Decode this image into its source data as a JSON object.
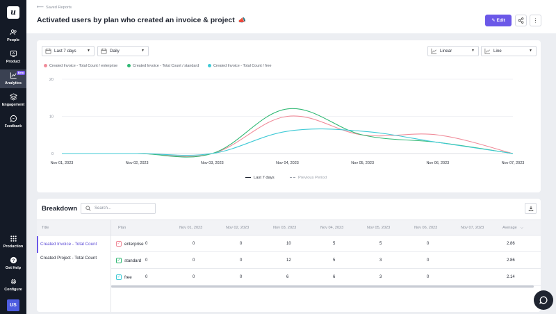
{
  "sidebar": {
    "logo": "u",
    "items": [
      {
        "label": "People",
        "icon": "people-icon"
      },
      {
        "label": "Product",
        "icon": "product-icon"
      },
      {
        "label": "Analytics",
        "icon": "analytics-icon",
        "badge": "Beta",
        "active": true
      },
      {
        "label": "Engagement",
        "icon": "engagement-icon"
      },
      {
        "label": "Feedback",
        "icon": "feedback-icon"
      }
    ],
    "bottom": [
      {
        "label": "Production",
        "icon": "grid-icon"
      },
      {
        "label": "Get Help",
        "icon": "help-icon"
      },
      {
        "label": "Configure",
        "icon": "gear-icon"
      }
    ],
    "avatar": "US"
  },
  "header": {
    "back_label": "Saved Reports",
    "title": "Activated users by plan who created an invoice & project",
    "edit_label": "Edit"
  },
  "controls": {
    "date_range": "Last 7 days",
    "interval": "Daily",
    "scale": "Linear",
    "chart_type": "Line"
  },
  "chart_data": {
    "type": "line",
    "x": [
      "Nov 01, 2023",
      "Nov 02, 2023",
      "Nov 03, 2023",
      "Nov 04, 2023",
      "Nov 05, 2023",
      "Nov 06, 2023",
      "Nov 07, 2023"
    ],
    "y_ticks": [
      "0",
      "10",
      "20"
    ],
    "ylim": [
      0,
      20
    ],
    "series": [
      {
        "name": "Created Invoice - Total Count / enterprise",
        "color": "#f08c9a",
        "values": [
          0,
          0,
          0,
          10,
          5,
          5,
          0
        ]
      },
      {
        "name": "Created Invoice - Total Count / standard",
        "color": "#2fb873",
        "values": [
          0,
          0,
          0,
          12,
          5,
          3,
          0
        ]
      },
      {
        "name": "Created Invoice - Total Count / free",
        "color": "#3fcad6",
        "values": [
          0,
          0,
          0,
          6,
          6,
          3,
          0
        ]
      }
    ],
    "period_legend": {
      "current": "Last 7 days",
      "previous": "Previous Period"
    },
    "grid": true
  },
  "breakdown": {
    "title": "Breakdown",
    "search_placeholder": "Search...",
    "col_title": "Title",
    "col_plan": "Plan",
    "dates": [
      "Nov 01, 2023",
      "Nov 02, 2023",
      "Nov 03, 2023",
      "Nov 04, 2023",
      "Nov 05, 2023",
      "Nov 06, 2023",
      "Nov 07, 2023"
    ],
    "col_average": "Average",
    "titles": [
      "Created Invoice - Total Count",
      "Created Project - Total Count"
    ],
    "rows": [
      {
        "plan": "enterprise",
        "color": "#f08c9a",
        "values": [
          "0",
          "0",
          "0",
          "10",
          "5",
          "5",
          "0"
        ],
        "average": "2.86"
      },
      {
        "plan": "standard",
        "color": "#2fb873",
        "values": [
          "0",
          "0",
          "0",
          "12",
          "5",
          "3",
          "0"
        ],
        "average": "2.86"
      },
      {
        "plan": "free",
        "color": "#3fcad6",
        "values": [
          "0",
          "0",
          "0",
          "6",
          "6",
          "3",
          "0"
        ],
        "average": "2.14"
      }
    ]
  },
  "colors": {
    "accent": "#6b58e8",
    "sidebar": "#141a26"
  }
}
